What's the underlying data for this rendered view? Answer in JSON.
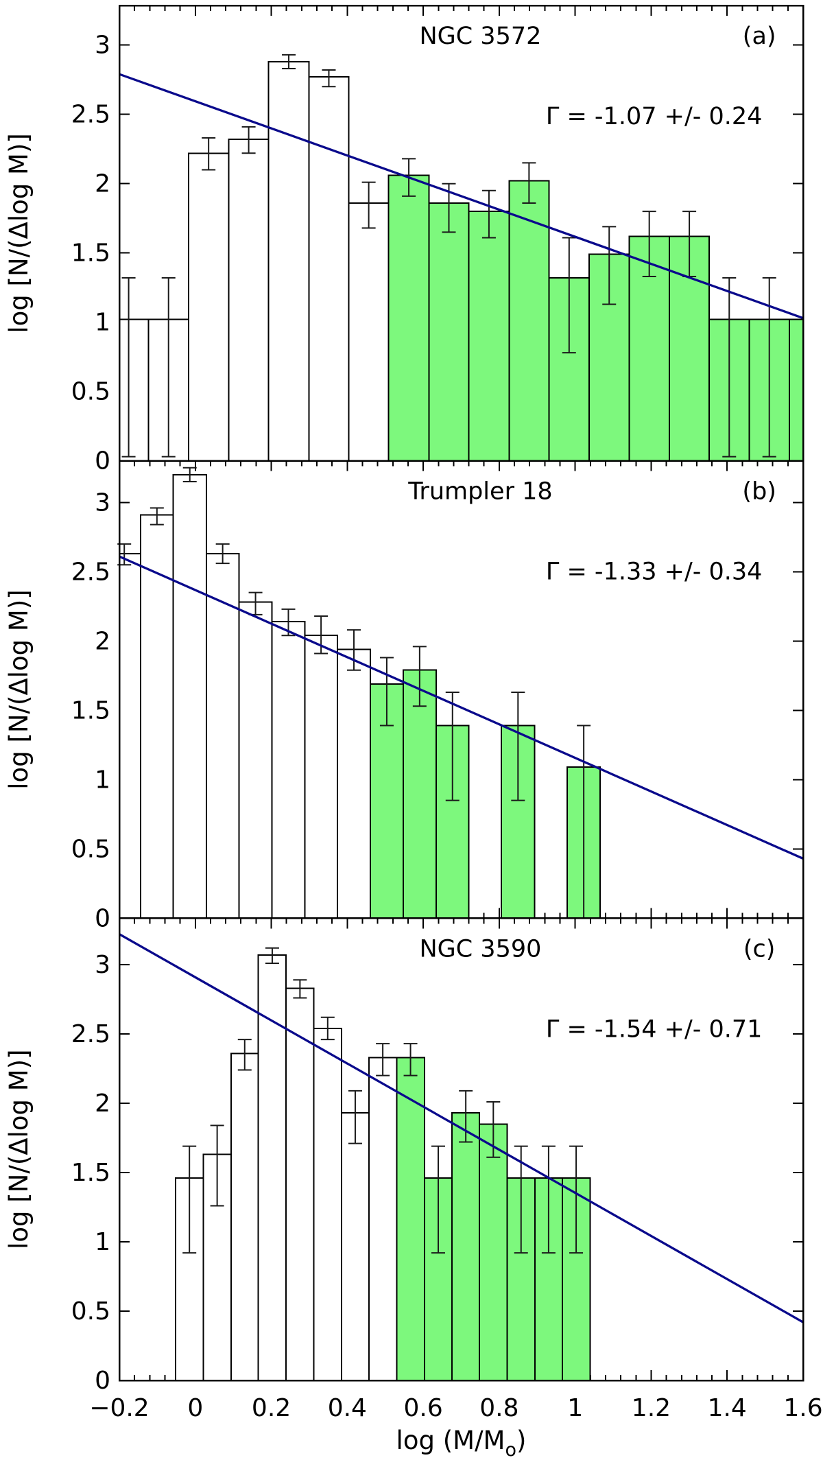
{
  "figure": {
    "background": "#ffffff",
    "x_axis": {
      "label_prefix": "log (M/M",
      "label_sub": "o",
      "label_suffix": ")",
      "range": [
        -0.2,
        1.6
      ],
      "tick_values": [
        -0.2,
        0,
        0.2,
        0.4,
        0.6,
        0.8,
        1,
        1.2,
        1.4,
        1.6
      ],
      "tick_labels": [
        "−0.2",
        "0",
        "0.2",
        "0.4",
        "0.6",
        "0.8",
        "1",
        "1.2",
        "1.4",
        "1.6"
      ],
      "minor_step": 0.04
    },
    "y_axis": {
      "label": "log [N/(Δlog M)]",
      "range": [
        0,
        3.3
      ],
      "tick_values": [
        0,
        0.5,
        1,
        1.5,
        2,
        2.5,
        3
      ],
      "tick_labels": [
        "0",
        "0.5",
        "1",
        "1.5",
        "2",
        "2.5",
        "3"
      ]
    },
    "colors": {
      "highlight_fill": "#7df87d",
      "bar_fill": "#ffffff",
      "bar_edge": "#000000",
      "error_bar": "#1a1a1a",
      "fit_line": "#0a0a8c",
      "frame": "#000000"
    }
  },
  "chart_data": [
    {
      "type": "histogram",
      "title": "NGC 3572",
      "panel_label": "(a)",
      "annotation": "Γ = -1.07 +/- 0.24",
      "gamma": -1.07,
      "gamma_err": 0.24,
      "xlim": [
        -0.2,
        1.6
      ],
      "ylim": [
        0,
        3.3
      ],
      "fit_line": {
        "x": [
          -0.2,
          1.6
        ],
        "y": [
          2.79,
          1.03
        ]
      },
      "bars_format": [
        "x_left",
        "x_right",
        "height",
        "err_low",
        "err_high",
        "highlighted"
      ],
      "bars": [
        [
          -0.228,
          -0.123,
          1.02,
          0.03,
          1.32,
          0
        ],
        [
          -0.123,
          -0.018,
          1.02,
          0.03,
          1.32,
          0
        ],
        [
          -0.018,
          0.088,
          2.22,
          2.1,
          2.33,
          0
        ],
        [
          0.088,
          0.193,
          2.32,
          2.22,
          2.41,
          0
        ],
        [
          0.193,
          0.299,
          2.88,
          2.83,
          2.93,
          0
        ],
        [
          0.299,
          0.404,
          2.77,
          2.7,
          2.82,
          0
        ],
        [
          0.404,
          0.509,
          1.86,
          1.68,
          2.01,
          0
        ],
        [
          0.509,
          0.615,
          2.06,
          1.91,
          2.18,
          1
        ],
        [
          0.615,
          0.72,
          1.86,
          1.65,
          2.0,
          1
        ],
        [
          0.72,
          0.826,
          1.8,
          1.61,
          1.95,
          1
        ],
        [
          0.826,
          0.931,
          2.02,
          1.86,
          2.15,
          1
        ],
        [
          0.931,
          1.037,
          1.32,
          0.78,
          1.61,
          1
        ],
        [
          1.037,
          1.142,
          1.49,
          1.13,
          1.69,
          1
        ],
        [
          1.142,
          1.248,
          1.62,
          1.33,
          1.8,
          1
        ],
        [
          1.248,
          1.353,
          1.62,
          1.33,
          1.8,
          1
        ],
        [
          1.353,
          1.458,
          1.02,
          0.03,
          1.32,
          1
        ],
        [
          1.458,
          1.564,
          1.02,
          0.03,
          1.32,
          1
        ],
        [
          1.564,
          1.669,
          1.02,
          0.03,
          1.32,
          1
        ]
      ]
    },
    {
      "type": "histogram",
      "title": "Trumpler 18",
      "panel_label": "(b)",
      "annotation": "Γ = -1.33 +/- 0.34",
      "gamma": -1.33,
      "gamma_err": 0.34,
      "xlim": [
        -0.2,
        1.6
      ],
      "ylim": [
        0,
        3.3
      ],
      "fit_line": {
        "x": [
          -0.2,
          1.6
        ],
        "y": [
          2.61,
          0.43
        ]
      },
      "bars_format": [
        "x_left",
        "x_right",
        "height",
        "err_low",
        "err_high",
        "highlighted"
      ],
      "bars": [
        [
          -0.23,
          -0.144,
          2.63,
          2.55,
          2.7,
          0
        ],
        [
          -0.144,
          -0.058,
          2.91,
          2.84,
          2.96,
          0
        ],
        [
          -0.058,
          0.029,
          3.2,
          3.15,
          3.25,
          0
        ],
        [
          0.029,
          0.115,
          2.63,
          2.56,
          2.7,
          0
        ],
        [
          0.115,
          0.202,
          2.28,
          2.19,
          2.35,
          0
        ],
        [
          0.202,
          0.288,
          2.14,
          2.04,
          2.23,
          0
        ],
        [
          0.288,
          0.374,
          2.04,
          1.91,
          2.18,
          0
        ],
        [
          0.374,
          0.461,
          1.94,
          1.79,
          2.08,
          0
        ],
        [
          0.461,
          0.547,
          1.69,
          1.39,
          1.88,
          1
        ],
        [
          0.547,
          0.634,
          1.79,
          1.53,
          1.96,
          1
        ],
        [
          0.634,
          0.72,
          1.39,
          0.85,
          1.63,
          1
        ],
        [
          0.806,
          0.893,
          1.39,
          0.85,
          1.63,
          1
        ],
        [
          0.979,
          1.066,
          1.09,
          0.0,
          1.39,
          1
        ]
      ]
    },
    {
      "type": "histogram",
      "title": "NGC 3590",
      "panel_label": "(c)",
      "annotation": "Γ = -1.54 +/- 0.71",
      "gamma": -1.54,
      "gamma_err": 0.71,
      "xlim": [
        -0.2,
        1.6
      ],
      "ylim": [
        0,
        3.3
      ],
      "fit_line": {
        "x": [
          -0.2,
          1.6
        ],
        "y": [
          3.22,
          0.42
        ]
      },
      "bars_format": [
        "x_left",
        "x_right",
        "height",
        "err_low",
        "err_high",
        "highlighted"
      ],
      "bars": [
        [
          -0.052,
          0.021,
          1.46,
          0.92,
          1.69,
          0
        ],
        [
          0.021,
          0.094,
          1.63,
          1.26,
          1.84,
          0
        ],
        [
          0.094,
          0.166,
          2.36,
          2.24,
          2.46,
          0
        ],
        [
          0.166,
          0.239,
          3.07,
          3.01,
          3.12,
          0
        ],
        [
          0.239,
          0.312,
          2.83,
          2.76,
          2.89,
          0
        ],
        [
          0.312,
          0.385,
          2.54,
          2.46,
          2.62,
          0
        ],
        [
          0.385,
          0.457,
          1.93,
          1.71,
          2.09,
          0
        ],
        [
          0.457,
          0.53,
          2.33,
          2.2,
          2.43,
          0
        ],
        [
          0.53,
          0.603,
          2.33,
          2.2,
          2.43,
          1
        ],
        [
          0.603,
          0.676,
          1.46,
          0.92,
          1.69,
          1
        ],
        [
          0.676,
          0.748,
          1.93,
          1.72,
          2.09,
          1
        ],
        [
          0.748,
          0.821,
          1.85,
          1.61,
          2.01,
          1
        ],
        [
          0.821,
          0.894,
          1.46,
          0.92,
          1.69,
          1
        ],
        [
          0.894,
          0.966,
          1.46,
          0.92,
          1.69,
          1
        ],
        [
          0.966,
          1.039,
          1.46,
          0.92,
          1.69,
          1
        ]
      ]
    }
  ]
}
